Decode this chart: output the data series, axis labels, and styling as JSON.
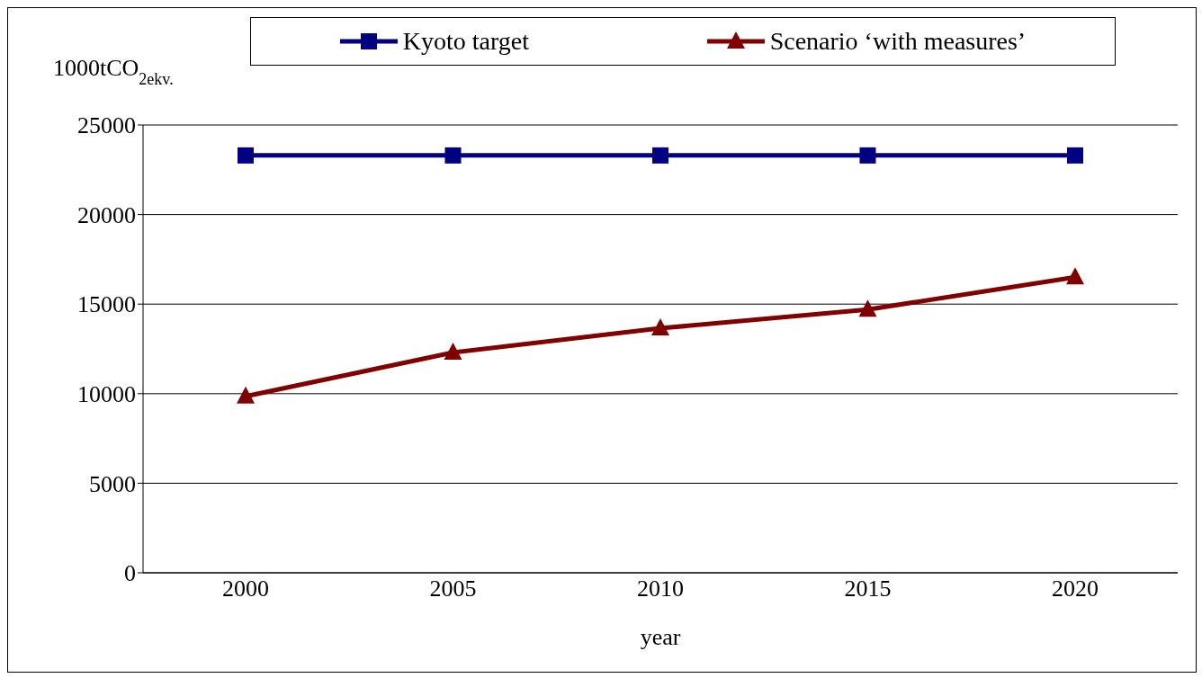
{
  "chart_data": {
    "type": "line",
    "ylabel": "1000tCO$_{2ekv.}$",
    "xlabel": "year",
    "categories": [
      "2000",
      "2005",
      "2010",
      "2015",
      "2020"
    ],
    "series": [
      {
        "name": "Kyoto target",
        "color": "#000080",
        "marker": "square",
        "values": [
          23300,
          23300,
          23300,
          23300,
          23300
        ]
      },
      {
        "name": "Scenario ‘with measures’",
        "color": "#800000",
        "marker": "triangle",
        "values": [
          9850,
          12300,
          13650,
          14700,
          16500
        ]
      }
    ],
    "ylim": [
      0,
      25000
    ],
    "yticks": [
      0,
      5000,
      10000,
      15000,
      20000,
      25000
    ],
    "grid": "y",
    "legend": "top"
  }
}
